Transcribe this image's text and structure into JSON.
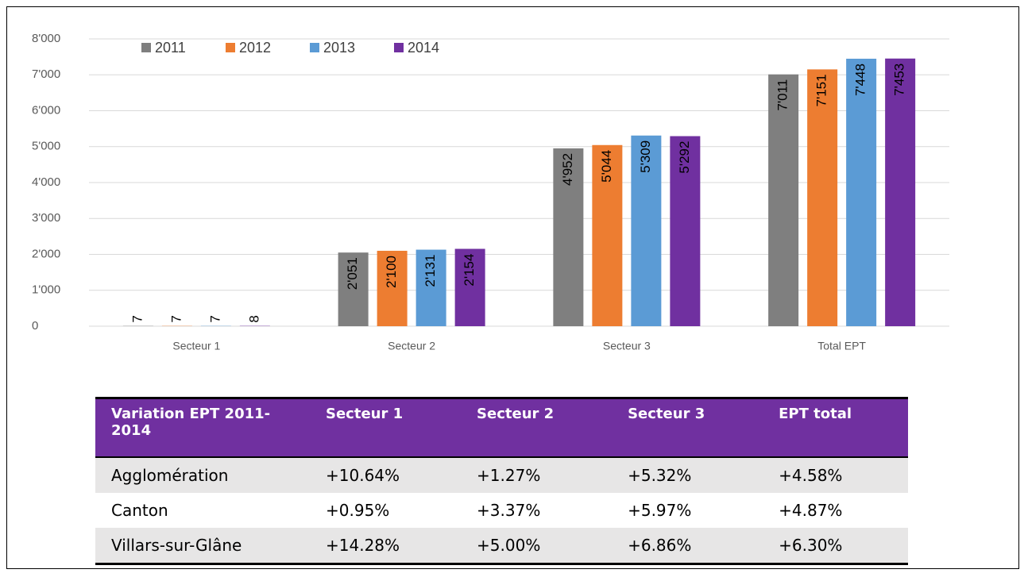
{
  "chart_data": {
    "type": "bar",
    "categories": [
      "Secteur 1",
      "Secteur 2",
      "Secteur 3",
      "Total EPT"
    ],
    "series": [
      {
        "name": "2011",
        "color": "#7f7f7f",
        "values": [
          7,
          2051,
          4952,
          7011
        ],
        "value_labels": [
          "7",
          "2'051",
          "4'952",
          "7'011"
        ]
      },
      {
        "name": "2012",
        "color": "#ed7d31",
        "values": [
          7,
          2100,
          5044,
          7151
        ],
        "value_labels": [
          "7",
          "2'100",
          "5'044",
          "7'151"
        ]
      },
      {
        "name": "2013",
        "color": "#5b9bd5",
        "values": [
          7,
          2131,
          5309,
          7448
        ],
        "value_labels": [
          "7",
          "2'131",
          "5'309",
          "7'448"
        ]
      },
      {
        "name": "2014",
        "color": "#7030a0",
        "values": [
          8,
          2154,
          5292,
          7453
        ],
        "value_labels": [
          "8",
          "2'154",
          "5'292",
          "7'453"
        ]
      }
    ],
    "ylim": [
      0,
      8000
    ],
    "yticks": [
      0,
      {
        "value": 1000,
        "label": "1'000"
      },
      {
        "value": 2000,
        "label": "2'000"
      },
      {
        "value": 3000,
        "label": "3'000"
      },
      {
        "value": 4000,
        "label": "4'000"
      },
      {
        "value": 5000,
        "label": "5'000"
      },
      {
        "value": 6000,
        "label": "6'000"
      },
      {
        "value": 7000,
        "label": "7'000"
      },
      {
        "value": 8000,
        "label": "8'000"
      }
    ],
    "grid": true,
    "legend": "top-left"
  },
  "table": {
    "header": [
      "Variation EPT 2011-2014",
      "Secteur 1",
      "Secteur 2",
      "Secteur 3",
      "EPT total"
    ],
    "rows": [
      [
        "Agglomération",
        "+10.64%",
        "+1.27%",
        "+5.32%",
        "+4.58%"
      ],
      [
        "Canton",
        "+0.95%",
        "+3.37%",
        "+5.97%",
        "+4.87%"
      ],
      [
        "Villars-sur-Glâne",
        "+14.28%",
        "+5.00%",
        "+6.86%",
        "+6.30%"
      ]
    ]
  }
}
